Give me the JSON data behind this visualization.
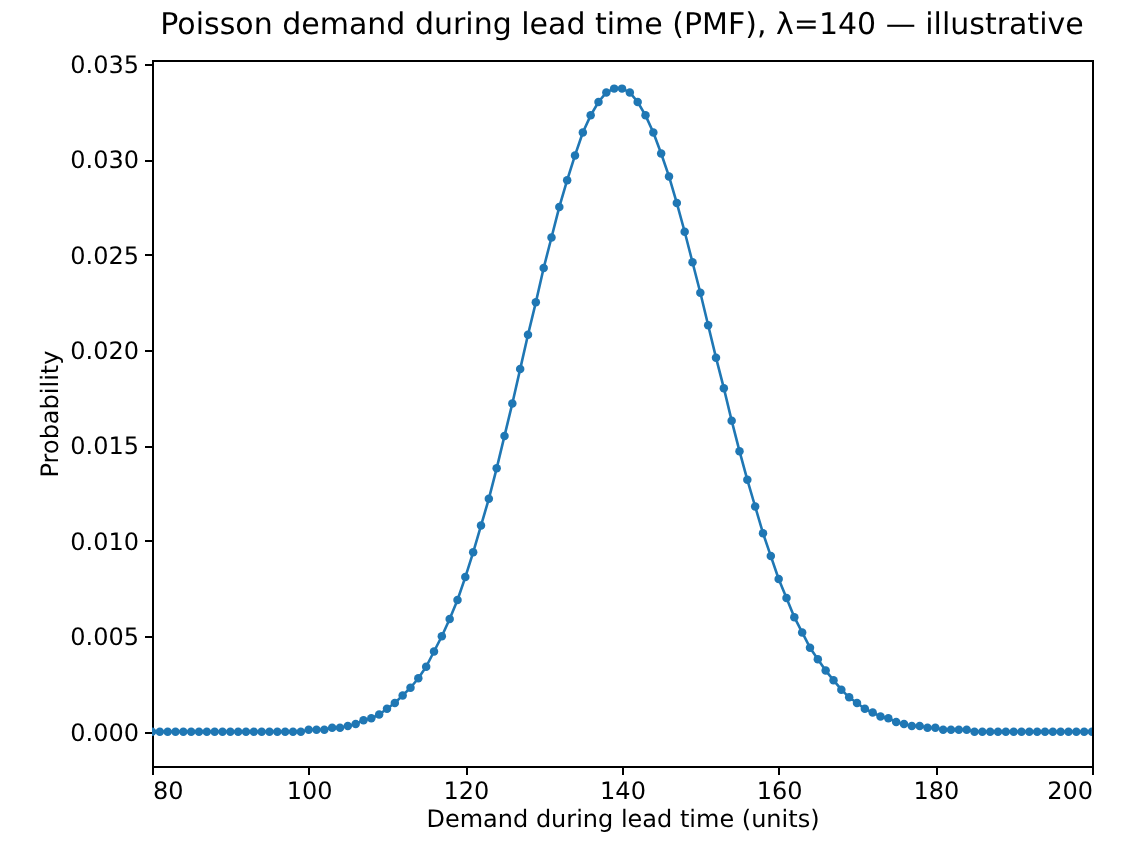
{
  "chart_data": {
    "type": "line",
    "title": "Poisson demand during lead time (PMF), λ=140 — illustrative",
    "xlabel": "Demand during lead time (units)",
    "ylabel": "Probability",
    "x": [
      80,
      81,
      82,
      83,
      84,
      85,
      86,
      87,
      88,
      89,
      90,
      91,
      92,
      93,
      94,
      95,
      96,
      97,
      98,
      99,
      100,
      101,
      102,
      103,
      104,
      105,
      106,
      107,
      108,
      109,
      110,
      111,
      112,
      113,
      114,
      115,
      116,
      117,
      118,
      119,
      120,
      121,
      122,
      123,
      124,
      125,
      126,
      127,
      128,
      129,
      130,
      131,
      132,
      133,
      134,
      135,
      136,
      137,
      138,
      139,
      140,
      141,
      142,
      143,
      144,
      145,
      146,
      147,
      148,
      149,
      150,
      151,
      152,
      153,
      154,
      155,
      156,
      157,
      158,
      159,
      160,
      161,
      162,
      163,
      164,
      165,
      166,
      167,
      168,
      169,
      170,
      171,
      172,
      173,
      174,
      175,
      176,
      177,
      178,
      179,
      180,
      181,
      182,
      183,
      184,
      185,
      186,
      187,
      188,
      189,
      190,
      191,
      192,
      193,
      194,
      195,
      196,
      197,
      198,
      199,
      200
    ],
    "series": [
      {
        "color": "#1f77b4",
        "values": [
          0,
          0,
          0,
          0,
          0,
          0,
          0,
          0,
          0,
          0,
          0,
          0,
          0,
          0,
          0,
          0,
          0,
          0,
          0,
          0,
          0.0001,
          0.0001,
          0.0001,
          0.0002,
          0.0002,
          0.0003,
          0.0004,
          0.0006,
          0.0007,
          0.0009,
          0.0012,
          0.0015,
          0.0019,
          0.0023,
          0.0028,
          0.0034,
          0.0042,
          0.005,
          0.0059,
          0.0069,
          0.0081,
          0.0094,
          0.0108,
          0.0122,
          0.0138,
          0.0155,
          0.0172,
          0.019,
          0.0208,
          0.0225,
          0.0243,
          0.0259,
          0.0275,
          0.0289,
          0.0302,
          0.0314,
          0.0323,
          0.033,
          0.0335,
          0.0337,
          0.0337,
          0.0335,
          0.033,
          0.0323,
          0.0314,
          0.0303,
          0.0291,
          0.0277,
          0.0262,
          0.0246,
          0.023,
          0.0213,
          0.0196,
          0.018,
          0.0163,
          0.0147,
          0.0132,
          0.0118,
          0.0104,
          0.0092,
          0.008,
          0.007,
          0.006,
          0.0052,
          0.0044,
          0.0038,
          0.0032,
          0.0027,
          0.0022,
          0.0018,
          0.0015,
          0.0012,
          0.001,
          0.0008,
          0.0007,
          0.0005,
          0.0004,
          0.0003,
          0.0003,
          0.0002,
          0.0002,
          0.0001,
          0.0001,
          0.0001,
          0.0001,
          0,
          0,
          0,
          0,
          0,
          0,
          0,
          0,
          0,
          0,
          0,
          0,
          0,
          0,
          0,
          0
        ]
      }
    ],
    "xlim": [
      80,
      200
    ],
    "xticks": [
      80,
      100,
      120,
      140,
      160,
      180,
      200
    ],
    "ylim": [
      -0.0018,
      0.0352
    ],
    "yticks": [
      {
        "value": 0,
        "label": "0.000"
      },
      {
        "value": 0.005,
        "label": "0.005"
      },
      {
        "value": 0.01,
        "label": "0.010"
      },
      {
        "value": 0.015,
        "label": "0.015"
      },
      {
        "value": 0.02,
        "label": "0.020"
      },
      {
        "value": 0.025,
        "label": "0.025"
      },
      {
        "value": 0.03,
        "label": "0.030"
      },
      {
        "value": 0.035,
        "label": "0.035"
      }
    ],
    "marker": "circle",
    "line_style": "solid",
    "grid": false
  }
}
